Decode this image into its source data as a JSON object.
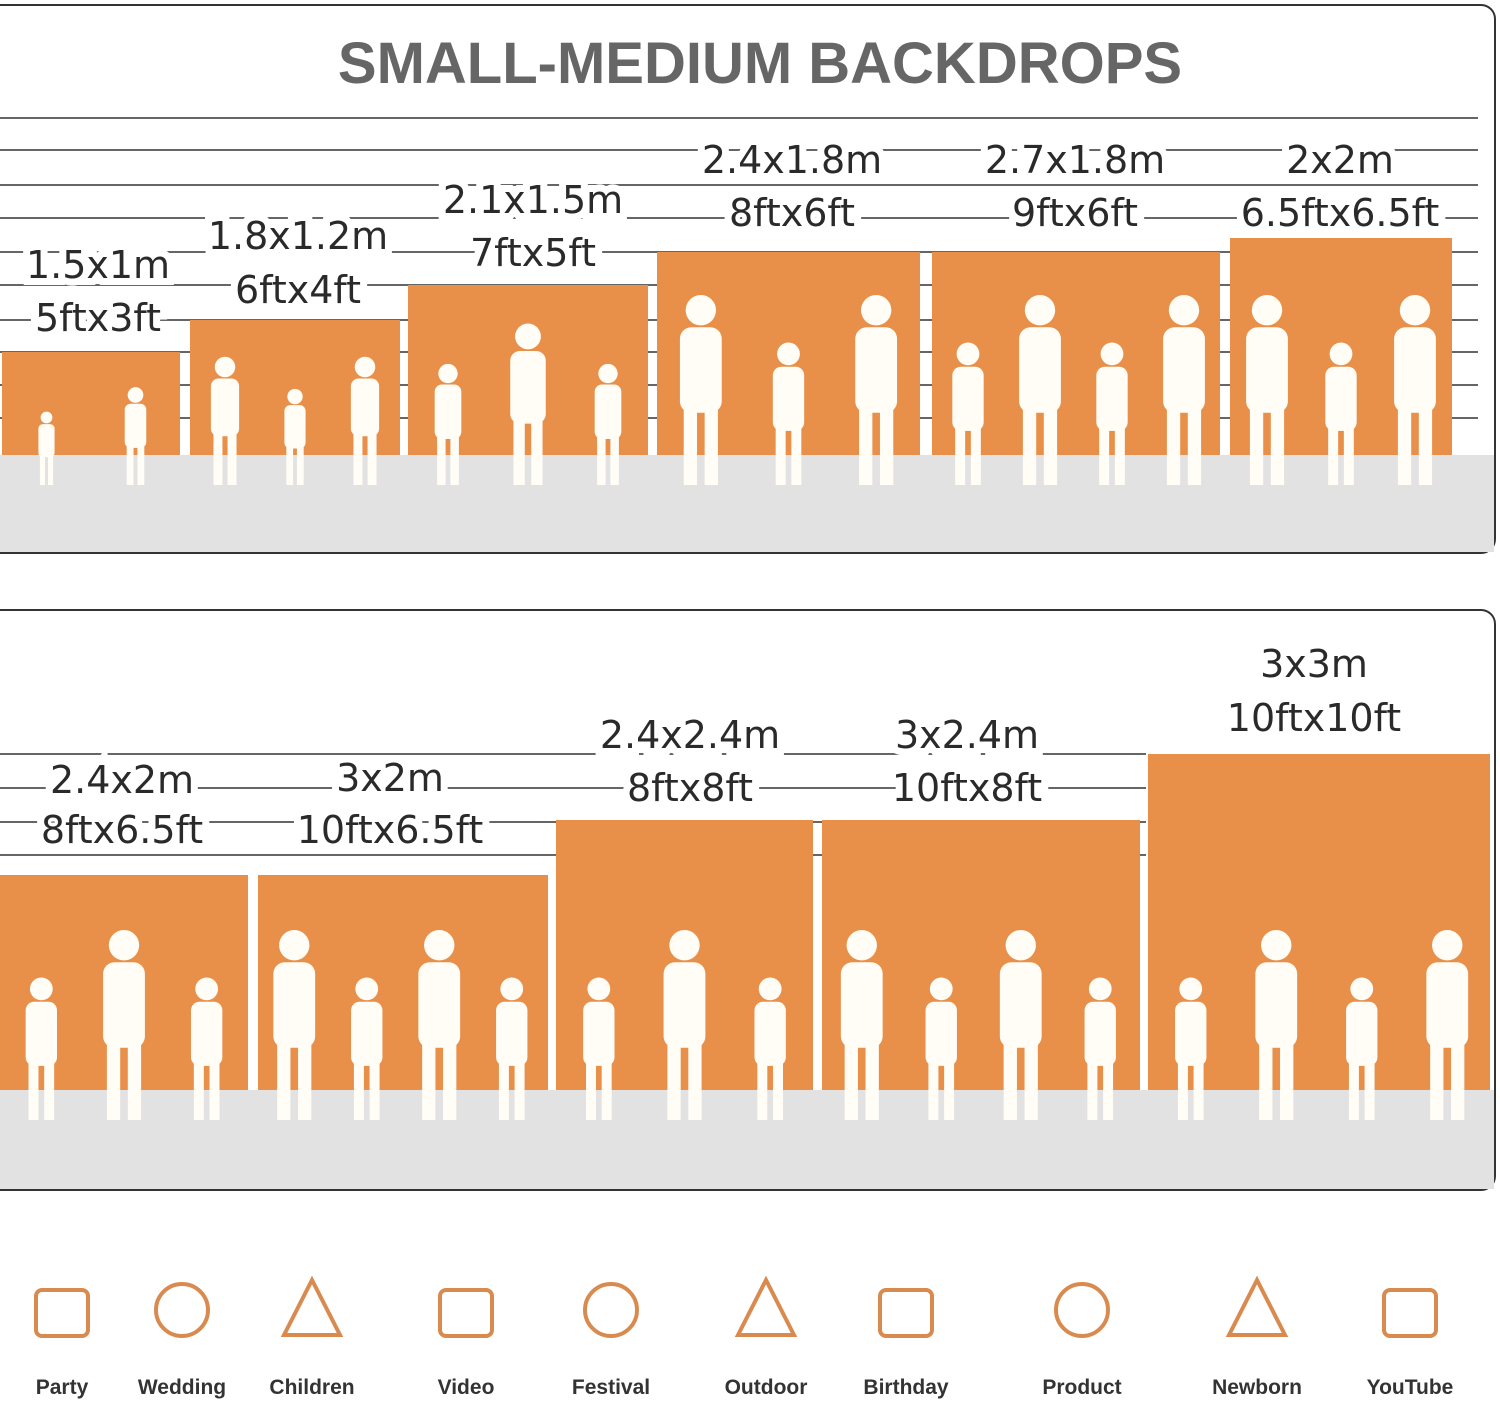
{
  "title": "SMALL-MEDIUM BACKDROPS",
  "panels": [
    {
      "sizes": [
        {
          "metric": "1.5x1m",
          "imperial": "5ftx3ft"
        },
        {
          "metric": "1.8x1.2m",
          "imperial": "6ftx4ft"
        },
        {
          "metric": "2.1x1.5m",
          "imperial": "7ftx5ft"
        },
        {
          "metric": "2.4x1.8m",
          "imperial": "8ftx6ft"
        },
        {
          "metric": "2.7x1.8m",
          "imperial": "9ftx6ft"
        },
        {
          "metric": "2x2m",
          "imperial": "6.5ftx6.5ft"
        }
      ]
    },
    {
      "sizes": [
        {
          "metric": "2.4x2m",
          "imperial": "8ftx6.5ft"
        },
        {
          "metric": "3x2m",
          "imperial": "10ftx6.5ft"
        },
        {
          "metric": "2.4x2.4m",
          "imperial": "8ftx8ft"
        },
        {
          "metric": "3x2.4m",
          "imperial": "10ftx8ft"
        },
        {
          "metric": "3x3m",
          "imperial": "10ftx10ft"
        }
      ]
    }
  ],
  "uses": [
    "Party",
    "Wedding",
    "Children",
    "Video",
    "Festival",
    "Outdoor",
    "Birthday",
    "Product",
    "Newborn",
    "YouTube"
  ]
}
